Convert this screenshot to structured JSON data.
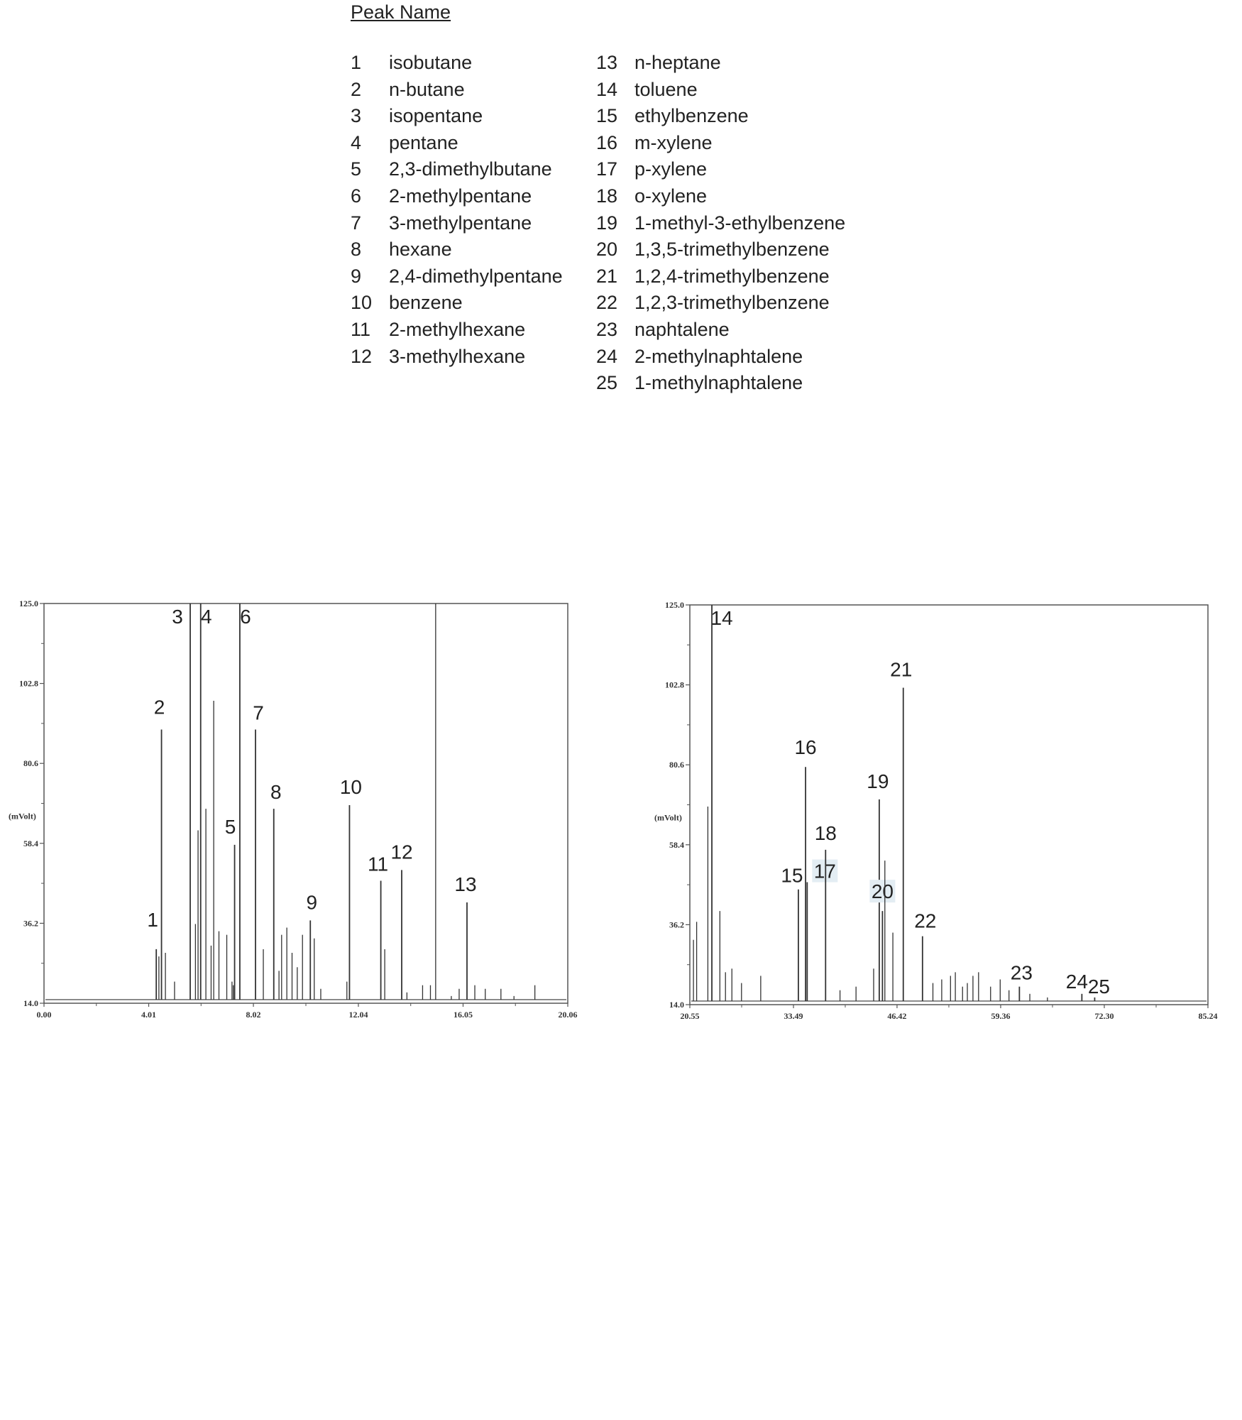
{
  "legend": {
    "title": "Peak Name",
    "col1": [
      {
        "num": "1",
        "name": "isobutane"
      },
      {
        "num": "2",
        "name": "n-butane"
      },
      {
        "num": "3",
        "name": "isopentane"
      },
      {
        "num": "4",
        "name": "pentane"
      },
      {
        "num": "5",
        "name": "2,3-dimethylbutane"
      },
      {
        "num": "6",
        "name": "2-methylpentane"
      },
      {
        "num": "7",
        "name": "3-methylpentane"
      },
      {
        "num": "8",
        "name": "hexane"
      },
      {
        "num": "9",
        "name": "2,4-dimethylpentane"
      },
      {
        "num": "10",
        "name": "benzene"
      },
      {
        "num": "11",
        "name": "2-methylhexane"
      },
      {
        "num": "12",
        "name": "3-methylhexane"
      }
    ],
    "col2": [
      {
        "num": "13",
        "name": "n-heptane"
      },
      {
        "num": "14",
        "name": "toluene"
      },
      {
        "num": "15",
        "name": "ethylbenzene"
      },
      {
        "num": "16",
        "name": "m-xylene"
      },
      {
        "num": "17",
        "name": "p-xylene"
      },
      {
        "num": "18",
        "name": "o-xylene"
      },
      {
        "num": "19",
        "name": "1-methyl-3-ethylbenzene"
      },
      {
        "num": "20",
        "name": "1,3,5-trimethylbenzene"
      },
      {
        "num": "21",
        "name": "1,2,4-trimethylbenzene"
      },
      {
        "num": "22",
        "name": "1,2,3-trimethylbenzene"
      },
      {
        "num": "23",
        "name": "naphtalene"
      },
      {
        "num": "24",
        "name": "2-methylnaphtalene"
      },
      {
        "num": "25",
        "name": "1-methylnaphtalene"
      }
    ]
  },
  "chart_data": [
    {
      "type": "line",
      "ylabel": "(mVolt)",
      "ylim": [
        14.0,
        125.0
      ],
      "xlim": [
        0.0,
        20.06
      ],
      "yticks": [
        "125.0",
        "102.8",
        "80.6",
        "58.4",
        "36.2",
        "14.0"
      ],
      "xticks": [
        "0.00",
        "4.01",
        "8.02",
        "12.04",
        "16.05",
        "20.06"
      ],
      "color": "#333333",
      "peaks": [
        {
          "x": 4.3,
          "y": 29,
          "label": "1"
        },
        {
          "x": 4.5,
          "y": 90,
          "label": "2"
        },
        {
          "x": 5.6,
          "y": 125,
          "label": "3"
        },
        {
          "x": 6.0,
          "y": 125,
          "label": "4"
        },
        {
          "x": 7.3,
          "y": 58,
          "label": "5"
        },
        {
          "x": 7.5,
          "y": 125,
          "label": "6"
        },
        {
          "x": 8.1,
          "y": 90,
          "label": "7"
        },
        {
          "x": 8.8,
          "y": 68,
          "label": "8"
        },
        {
          "x": 10.2,
          "y": 37,
          "label": "9"
        },
        {
          "x": 11.7,
          "y": 69,
          "label": "10"
        },
        {
          "x": 12.9,
          "y": 48,
          "label": "11"
        },
        {
          "x": 13.7,
          "y": 51,
          "label": "12"
        },
        {
          "x": 16.2,
          "y": 42,
          "label": "13"
        },
        {
          "x": 15.0,
          "y": 125,
          "label": ""
        },
        {
          "x": 4.4,
          "y": 27,
          "label": ""
        },
        {
          "x": 4.65,
          "y": 28,
          "label": ""
        },
        {
          "x": 5.0,
          "y": 20,
          "label": ""
        },
        {
          "x": 5.8,
          "y": 36,
          "label": ""
        },
        {
          "x": 5.9,
          "y": 62,
          "label": ""
        },
        {
          "x": 6.2,
          "y": 68,
          "label": ""
        },
        {
          "x": 6.4,
          "y": 30,
          "label": ""
        },
        {
          "x": 6.5,
          "y": 98,
          "label": ""
        },
        {
          "x": 6.7,
          "y": 34,
          "label": ""
        },
        {
          "x": 7.0,
          "y": 33,
          "label": ""
        },
        {
          "x": 7.2,
          "y": 20,
          "label": ""
        },
        {
          "x": 7.25,
          "y": 19,
          "label": ""
        },
        {
          "x": 8.4,
          "y": 29,
          "label": ""
        },
        {
          "x": 9.0,
          "y": 23,
          "label": ""
        },
        {
          "x": 9.1,
          "y": 33,
          "label": ""
        },
        {
          "x": 9.3,
          "y": 35,
          "label": ""
        },
        {
          "x": 9.5,
          "y": 28,
          "label": ""
        },
        {
          "x": 9.7,
          "y": 24,
          "label": ""
        },
        {
          "x": 9.9,
          "y": 33,
          "label": ""
        },
        {
          "x": 10.35,
          "y": 32,
          "label": ""
        },
        {
          "x": 10.6,
          "y": 18,
          "label": ""
        },
        {
          "x": 11.6,
          "y": 20,
          "label": ""
        },
        {
          "x": 13.05,
          "y": 29,
          "label": ""
        },
        {
          "x": 13.9,
          "y": 17,
          "label": ""
        },
        {
          "x": 14.5,
          "y": 19,
          "label": ""
        },
        {
          "x": 14.8,
          "y": 19,
          "label": ""
        },
        {
          "x": 15.6,
          "y": 16,
          "label": ""
        },
        {
          "x": 15.9,
          "y": 18,
          "label": ""
        },
        {
          "x": 16.5,
          "y": 19,
          "label": ""
        },
        {
          "x": 16.9,
          "y": 18,
          "label": ""
        },
        {
          "x": 17.5,
          "y": 18,
          "label": ""
        },
        {
          "x": 18.0,
          "y": 16,
          "label": ""
        },
        {
          "x": 18.8,
          "y": 19,
          "label": ""
        }
      ]
    },
    {
      "type": "line",
      "ylabel": "(mVolt)",
      "ylim": [
        14.0,
        125.0
      ],
      "xlim": [
        20.55,
        85.24
      ],
      "yticks": [
        "125.0",
        "102.8",
        "80.6",
        "58.4",
        "36.2",
        "14.0"
      ],
      "xticks": [
        "20.55",
        "33.49",
        "46.42",
        "59.36",
        "72.30",
        "85.24"
      ],
      "color": "#333333",
      "peaks": [
        {
          "x": 23.3,
          "y": 125,
          "label": "14"
        },
        {
          "x": 34.1,
          "y": 46,
          "label": "15"
        },
        {
          "x": 35.0,
          "y": 80,
          "label": "16"
        },
        {
          "x": 35.2,
          "y": 48,
          "label": "17"
        },
        {
          "x": 37.5,
          "y": 57,
          "label": "18"
        },
        {
          "x": 44.2,
          "y": 71,
          "label": "19"
        },
        {
          "x": 44.6,
          "y": 40,
          "label": "20"
        },
        {
          "x": 47.2,
          "y": 102,
          "label": "21"
        },
        {
          "x": 49.6,
          "y": 33,
          "label": "22"
        },
        {
          "x": 61.7,
          "y": 19,
          "label": "23"
        },
        {
          "x": 69.5,
          "y": 17,
          "label": "24"
        },
        {
          "x": 71.1,
          "y": 16,
          "label": "25"
        },
        {
          "x": 21.0,
          "y": 32,
          "label": ""
        },
        {
          "x": 21.4,
          "y": 37,
          "label": ""
        },
        {
          "x": 22.8,
          "y": 69,
          "label": ""
        },
        {
          "x": 24.3,
          "y": 40,
          "label": ""
        },
        {
          "x": 25.0,
          "y": 23,
          "label": ""
        },
        {
          "x": 25.8,
          "y": 24,
          "label": ""
        },
        {
          "x": 27.0,
          "y": 20,
          "label": ""
        },
        {
          "x": 29.4,
          "y": 22,
          "label": ""
        },
        {
          "x": 39.3,
          "y": 18,
          "label": ""
        },
        {
          "x": 41.3,
          "y": 19,
          "label": ""
        },
        {
          "x": 43.5,
          "y": 24,
          "label": ""
        },
        {
          "x": 44.9,
          "y": 54,
          "label": ""
        },
        {
          "x": 45.9,
          "y": 34,
          "label": ""
        },
        {
          "x": 50.9,
          "y": 20,
          "label": ""
        },
        {
          "x": 52.0,
          "y": 21,
          "label": ""
        },
        {
          "x": 53.1,
          "y": 22,
          "label": ""
        },
        {
          "x": 53.7,
          "y": 23,
          "label": ""
        },
        {
          "x": 54.6,
          "y": 19,
          "label": ""
        },
        {
          "x": 55.2,
          "y": 20,
          "label": ""
        },
        {
          "x": 55.9,
          "y": 22,
          "label": ""
        },
        {
          "x": 56.6,
          "y": 23,
          "label": ""
        },
        {
          "x": 58.1,
          "y": 19,
          "label": ""
        },
        {
          "x": 59.3,
          "y": 21,
          "label": ""
        },
        {
          "x": 60.4,
          "y": 18,
          "label": ""
        },
        {
          "x": 63.0,
          "y": 17,
          "label": ""
        },
        {
          "x": 65.2,
          "y": 16,
          "label": ""
        }
      ]
    }
  ]
}
